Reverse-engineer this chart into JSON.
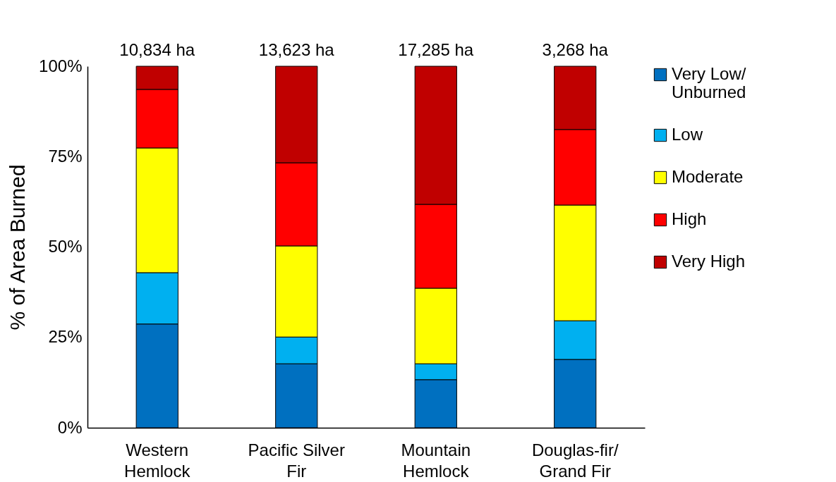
{
  "chart_data": {
    "type": "bar",
    "stacked": true,
    "ylabel": "% of Area Burned",
    "categories": [
      "Western Hemlock",
      "Pacific Silver Fir",
      "Mountain Hemlock",
      "Douglas-fir/ Grand Fir"
    ],
    "series": [
      {
        "name": "Very Low/ Unburned",
        "color": "#0070c0",
        "values": [
          28.7,
          17.7,
          13.3,
          18.9
        ]
      },
      {
        "name": "Low",
        "color": "#00b0f0",
        "values": [
          14.2,
          7.4,
          4.4,
          10.7
        ]
      },
      {
        "name": "Moderate",
        "color": "#ffff00",
        "values": [
          34.5,
          25.2,
          20.9,
          32.0
        ]
      },
      {
        "name": "High",
        "color": "#ff0000",
        "values": [
          16.2,
          23.0,
          23.2,
          20.9
        ]
      },
      {
        "name": "Very High",
        "color": "#c00000",
        "values": [
          6.4,
          26.7,
          38.2,
          17.5
        ]
      }
    ],
    "annotations": [
      {
        "text": "10,834 ha",
        "x": "Western Hemlock",
        "y": 100
      },
      {
        "text": "13,623 ha",
        "x": "Pacific Silver Fir",
        "y": 100
      },
      {
        "text": "17,285 ha",
        "x": "Mountain Hemlock",
        "y": 100
      },
      {
        "text": "3,268 ha",
        "x": "Douglas-fir/ Grand Fir",
        "y": 100
      }
    ],
    "ylim": [
      0,
      100
    ],
    "yticks": [
      {
        "value": 0,
        "label": "0%"
      },
      {
        "value": 25,
        "label": "25%"
      },
      {
        "value": 50,
        "label": "50%"
      },
      {
        "value": 75,
        "label": "75%"
      },
      {
        "value": 100,
        "label": "100%"
      }
    ],
    "grid": false,
    "legend": "right"
  }
}
